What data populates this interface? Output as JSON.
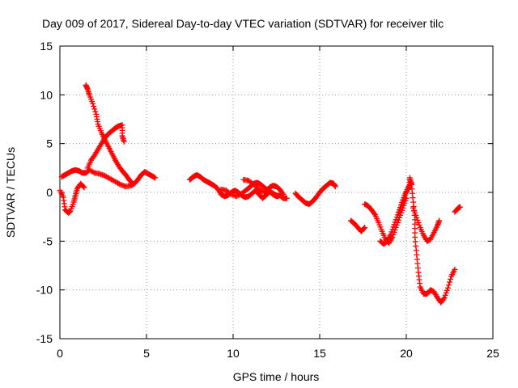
{
  "chart_data": {
    "type": "scatter",
    "title": "Day 009 of 2017, Sidereal Day-to-day VTEC variation (SDTVAR) for receiver tilc",
    "xlabel": "GPS time / hours",
    "ylabel": "SDTVAR / TECUs",
    "xlim": [
      0,
      25
    ],
    "ylim": [
      -15,
      15
    ],
    "xticks": [
      "0",
      "5",
      "10",
      "15",
      "20",
      "25"
    ],
    "yticks": [
      "-15",
      "-10",
      "-5",
      "0",
      "5",
      "10",
      "15"
    ],
    "grid": true,
    "marker": "plus",
    "color": "#ff0000",
    "series": [
      {
        "points": [
          [
            0.1,
            1.6
          ],
          [
            0.3,
            1.8
          ],
          [
            0.5,
            2.0
          ],
          [
            0.7,
            2.2
          ],
          [
            0.9,
            2.3
          ],
          [
            1.1,
            2.2
          ],
          [
            1.3,
            2.0
          ],
          [
            1.5,
            2.0
          ],
          [
            1.7,
            2.3
          ],
          [
            2.0,
            2.0
          ],
          [
            2.3,
            1.9
          ],
          [
            2.6,
            1.7
          ],
          [
            2.9,
            1.4
          ],
          [
            3.2,
            1.1
          ],
          [
            3.5,
            0.8
          ],
          [
            3.8,
            0.6
          ],
          [
            4.1,
            0.7
          ],
          [
            4.3,
            0.9
          ],
          [
            4.5,
            1.3
          ],
          [
            4.7,
            1.8
          ],
          [
            4.9,
            2.1
          ],
          [
            5.1,
            1.9
          ],
          [
            5.3,
            1.7
          ],
          [
            5.5,
            1.5
          ],
          [
            0.0,
            0.2
          ],
          [
            0.2,
            -0.5
          ],
          [
            0.3,
            -1.8
          ],
          [
            0.5,
            -2.1
          ],
          [
            0.6,
            -1.9
          ],
          [
            0.8,
            -1.0
          ],
          [
            0.9,
            -0.3
          ],
          [
            1.0,
            0.4
          ],
          [
            1.2,
            0.9
          ],
          [
            1.4,
            0.5
          ],
          [
            1.5,
            11.0
          ],
          [
            1.6,
            10.6
          ],
          [
            1.7,
            10.0
          ],
          [
            1.9,
            9.1
          ],
          [
            2.1,
            8.0
          ],
          [
            2.2,
            7.0
          ],
          [
            2.4,
            6.1
          ],
          [
            2.6,
            5.4
          ],
          [
            2.8,
            4.7
          ],
          [
            3.0,
            4.0
          ],
          [
            3.2,
            3.3
          ],
          [
            3.4,
            2.7
          ],
          [
            3.6,
            2.2
          ],
          [
            3.8,
            1.8
          ],
          [
            4.0,
            1.3
          ],
          [
            4.2,
            0.9
          ],
          [
            1.6,
            2.5
          ],
          [
            1.8,
            3.3
          ],
          [
            2.0,
            3.8
          ],
          [
            2.2,
            4.4
          ],
          [
            2.4,
            5.0
          ],
          [
            2.6,
            5.6
          ],
          [
            2.8,
            6.0
          ],
          [
            3.0,
            6.3
          ],
          [
            3.2,
            6.6
          ],
          [
            3.4,
            6.8
          ],
          [
            3.6,
            6.9
          ],
          [
            3.6,
            5.8
          ],
          [
            3.7,
            5.2
          ]
        ]
      },
      {
        "points": [
          [
            7.5,
            1.3
          ],
          [
            7.7,
            1.6
          ],
          [
            7.9,
            1.8
          ],
          [
            8.1,
            1.6
          ],
          [
            8.3,
            1.3
          ],
          [
            8.5,
            1.1
          ],
          [
            8.7,
            0.9
          ],
          [
            8.9,
            0.7
          ],
          [
            9.1,
            0.4
          ],
          [
            9.3,
            -0.2
          ],
          [
            9.5,
            -0.4
          ],
          [
            9.7,
            -0.3
          ],
          [
            9.9,
            0.0
          ],
          [
            10.1,
            0.2
          ],
          [
            10.3,
            0.0
          ],
          [
            10.5,
            -0.3
          ],
          [
            10.7,
            -0.5
          ],
          [
            10.9,
            -0.4
          ],
          [
            11.1,
            -0.1
          ],
          [
            11.3,
            0.2
          ],
          [
            11.5,
            -0.2
          ],
          [
            11.7,
            -0.6
          ],
          [
            11.9,
            -0.3
          ],
          [
            12.1,
            0.1
          ],
          [
            12.3,
            -0.2
          ],
          [
            12.5,
            -0.4
          ],
          [
            12.7,
            -0.3
          ],
          [
            12.9,
            -0.6
          ],
          [
            13.1,
            -0.6
          ],
          [
            9.3,
            0.3
          ],
          [
            9.6,
            0.2
          ],
          [
            9.9,
            -0.2
          ],
          [
            10.2,
            -0.4
          ],
          [
            10.5,
            -0.1
          ],
          [
            10.8,
            0.3
          ],
          [
            11.0,
            0.6
          ],
          [
            11.2,
            0.9
          ],
          [
            11.4,
            1.0
          ],
          [
            11.6,
            0.8
          ],
          [
            11.8,
            0.5
          ],
          [
            12.0,
            0.2
          ],
          [
            12.2,
            0.0
          ],
          [
            12.4,
            -0.2
          ],
          [
            12.6,
            -0.4
          ],
          [
            10.6,
            1.3
          ],
          [
            10.9,
            1.2
          ],
          [
            11.2,
            0.8
          ],
          [
            11.5,
            0.3
          ],
          [
            11.8,
            0.0
          ],
          [
            12.1,
            0.5
          ],
          [
            12.3,
            0.7
          ],
          [
            12.5,
            0.6
          ],
          [
            12.7,
            0.3
          ],
          [
            12.9,
            -0.2
          ],
          [
            13.6,
            -0.1
          ],
          [
            13.8,
            -0.5
          ],
          [
            14.0,
            -0.8
          ],
          [
            14.2,
            -1.1
          ],
          [
            14.4,
            -1.2
          ],
          [
            14.6,
            -0.9
          ],
          [
            14.8,
            -0.5
          ],
          [
            15.0,
            0.0
          ],
          [
            15.2,
            0.4
          ],
          [
            15.4,
            0.7
          ],
          [
            15.6,
            1.0
          ],
          [
            15.8,
            0.9
          ],
          [
            15.9,
            0.6
          ]
        ]
      },
      {
        "points": [
          [
            16.8,
            -2.9
          ],
          [
            17.0,
            -3.2
          ],
          [
            17.2,
            -3.6
          ],
          [
            17.4,
            -4.0
          ],
          [
            17.6,
            -3.6
          ],
          [
            17.6,
            -1.2
          ],
          [
            17.8,
            -1.4
          ],
          [
            18.0,
            -1.8
          ],
          [
            18.2,
            -2.3
          ],
          [
            18.4,
            -3.1
          ],
          [
            18.6,
            -4.0
          ],
          [
            18.8,
            -4.8
          ],
          [
            19.0,
            -5.2
          ],
          [
            19.2,
            -4.6
          ],
          [
            19.4,
            -3.6
          ],
          [
            19.6,
            -2.6
          ],
          [
            19.8,
            -1.6
          ],
          [
            20.0,
            -0.6
          ],
          [
            18.5,
            -5.0
          ],
          [
            18.7,
            -5.3
          ],
          [
            18.9,
            -5.0
          ],
          [
            19.1,
            -4.3
          ],
          [
            19.3,
            -3.3
          ],
          [
            19.5,
            -2.3
          ],
          [
            19.7,
            -1.3
          ],
          [
            19.9,
            -0.3
          ],
          [
            20.1,
            0.5
          ],
          [
            20.3,
            1.0
          ],
          [
            19.6,
            -2.0
          ],
          [
            19.8,
            -1.0
          ],
          [
            20.0,
            0.0
          ],
          [
            20.2,
            0.6
          ],
          [
            20.2,
            1.5
          ],
          [
            20.3,
            0.8
          ],
          [
            20.4,
            -1.0
          ],
          [
            20.5,
            -2.8
          ],
          [
            20.5,
            -4.6
          ],
          [
            20.6,
            -6.4
          ],
          [
            20.7,
            -8.2
          ],
          [
            20.8,
            -9.7
          ],
          [
            21.0,
            -10.4
          ],
          [
            21.2,
            -10.4
          ],
          [
            21.4,
            -10.0
          ],
          [
            21.6,
            -10.2
          ],
          [
            21.8,
            -10.8
          ],
          [
            22.0,
            -11.3
          ],
          [
            22.2,
            -10.8
          ],
          [
            22.4,
            -9.8
          ],
          [
            22.6,
            -8.6
          ],
          [
            22.8,
            -7.9
          ],
          [
            20.4,
            -1.6
          ],
          [
            20.6,
            -2.6
          ],
          [
            20.8,
            -3.6
          ],
          [
            21.0,
            -4.4
          ],
          [
            21.2,
            -5.0
          ],
          [
            21.4,
            -4.8
          ],
          [
            21.6,
            -4.1
          ],
          [
            21.8,
            -3.4
          ],
          [
            21.9,
            -2.9
          ],
          [
            22.8,
            -2.0
          ],
          [
            23.0,
            -1.6
          ],
          [
            23.1,
            -1.5
          ]
        ]
      }
    ]
  }
}
